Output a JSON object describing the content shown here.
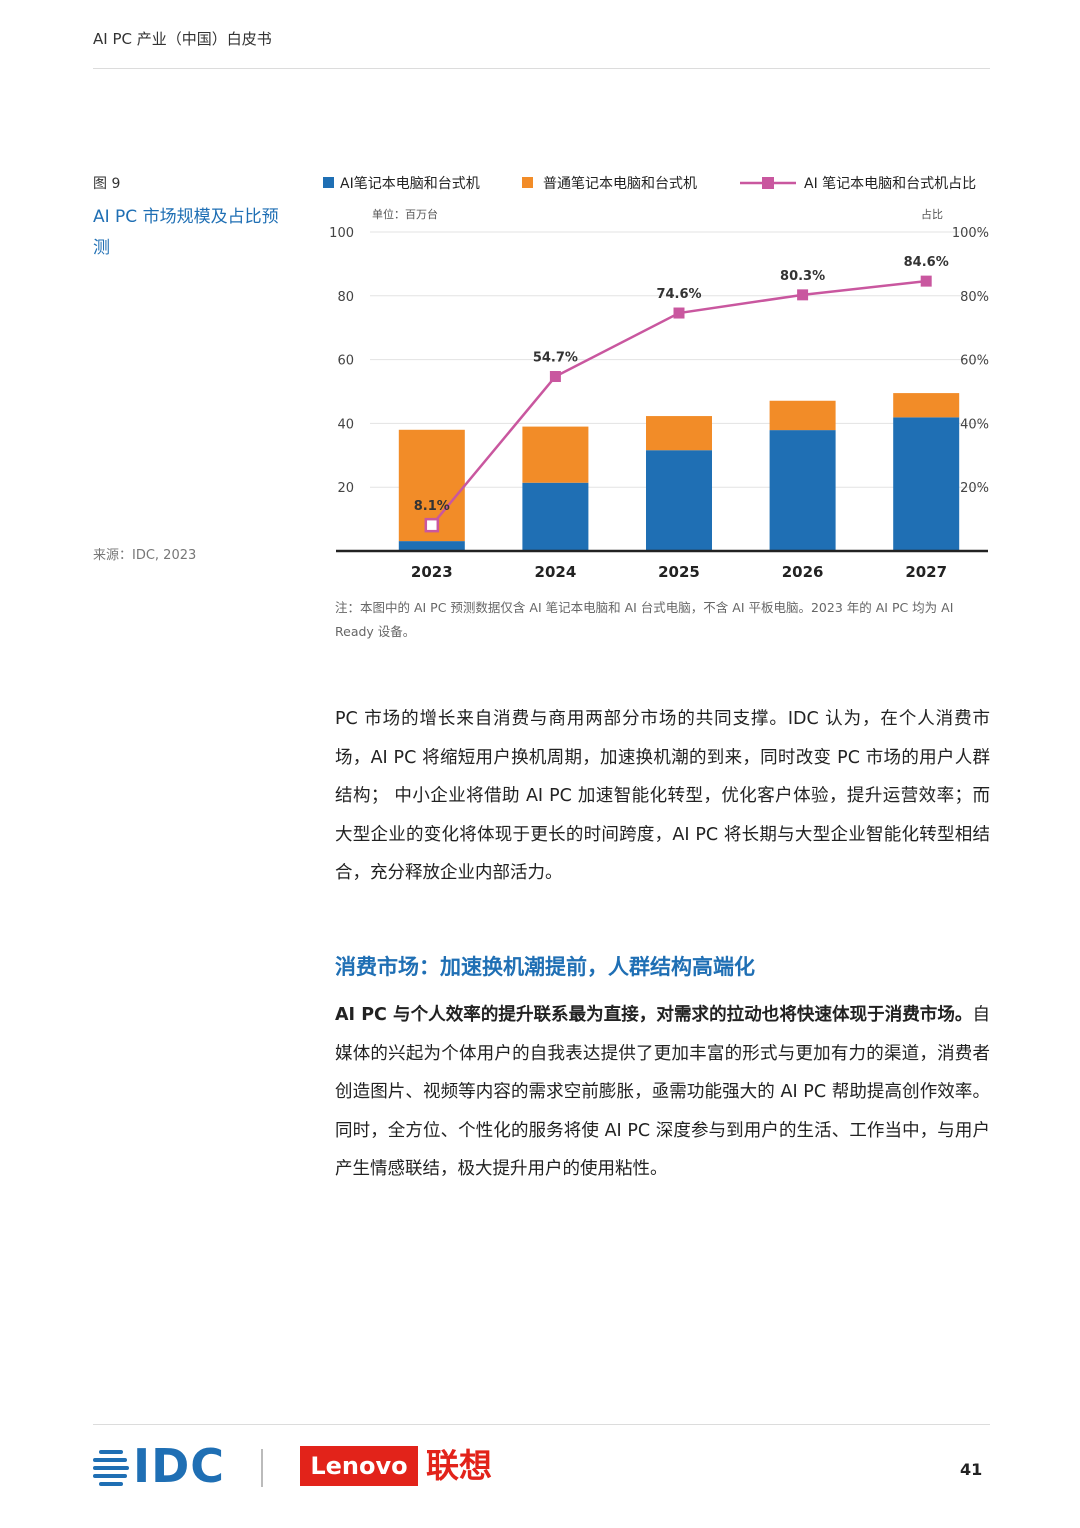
{
  "header": {
    "title": "AI PC 产业（中国）白皮书"
  },
  "figure": {
    "number": "图 9",
    "title": "AI PC 市场规模及占比预测",
    "source": "来源：IDC, 2023",
    "note": "注：本图中的 AI PC 预测数据仅含 AI 笔记本电脑和 AI 台式电脑，不含 AI 平板电脑。2023 年的 AI PC 均为 AI Ready 设备。"
  },
  "chart_data": {
    "type": "bar",
    "stacked": true,
    "categories": [
      "2023",
      "2024",
      "2025",
      "2026",
      "2027"
    ],
    "series": [
      {
        "name": "AI笔记本电脑和台式机",
        "values": [
          3.1,
          21.4,
          31.6,
          37.9,
          41.9
        ],
        "color": "#1f6fb4"
      },
      {
        "name": "普通笔记本电脑和台式机",
        "values": [
          34.9,
          17.6,
          10.7,
          9.2,
          7.6
        ],
        "color": "#f28c28"
      }
    ],
    "line_series": {
      "name": "AI 笔记本电脑和台式机占比",
      "values": [
        8.1,
        54.7,
        74.6,
        80.3,
        84.6
      ],
      "labels": [
        "8.1%",
        "54.7%",
        "74.6%",
        "80.3%",
        "84.6%"
      ],
      "color": "#c9579f",
      "axis": "right"
    },
    "ylabel": "单位：百万台",
    "y2label": "占比",
    "ylim": [
      0,
      100
    ],
    "y2lim": [
      0,
      100
    ],
    "yticks": [
      "20",
      "40",
      "60",
      "80",
      "100"
    ],
    "y2ticks": [
      "20%",
      "40%",
      "60%",
      "80%",
      "100%"
    ],
    "legend_position": "top",
    "grid": true
  },
  "paragraph1": "PC 市场的增长来自消费与商用两部分市场的共同支撑。IDC 认为，在个人消费市场，AI PC 将缩短用户换机周期，加速换机潮的到来，同时改变 PC 市场的用户人群结构； 中小企业将借助 AI PC 加速智能化转型，优化客户体验，提升运营效率；而大型企业的变化将体现于更长的时间跨度，AI PC 将长期与大型企业智能化转型相结合，充分释放企业内部活力。",
  "section": {
    "heading": "消费市场：加速换机潮提前，人群结构高端化",
    "lead_bold": "AI PC 与个人效率的提升联系最为直接，对需求的拉动也将快速体现于消费市场。",
    "body": "自媒体的兴起为个体用户的自我表达提供了更加丰富的形式与更加有力的渠道，消费者创造图片、视频等内容的需求空前膨胀，亟需功能强大的 AI PC 帮助提高创作效率。同时，全方位、个性化的服务将使 AI PC 深度参与到用户的生活、工作当中，与用户产生情感联结，极大提升用户的使用粘性。"
  },
  "footer": {
    "idc_logo_text": "IDC",
    "lenovo_logo_text": "Lenovo",
    "lenovo_cn_text": "联想",
    "page_number": "41"
  }
}
